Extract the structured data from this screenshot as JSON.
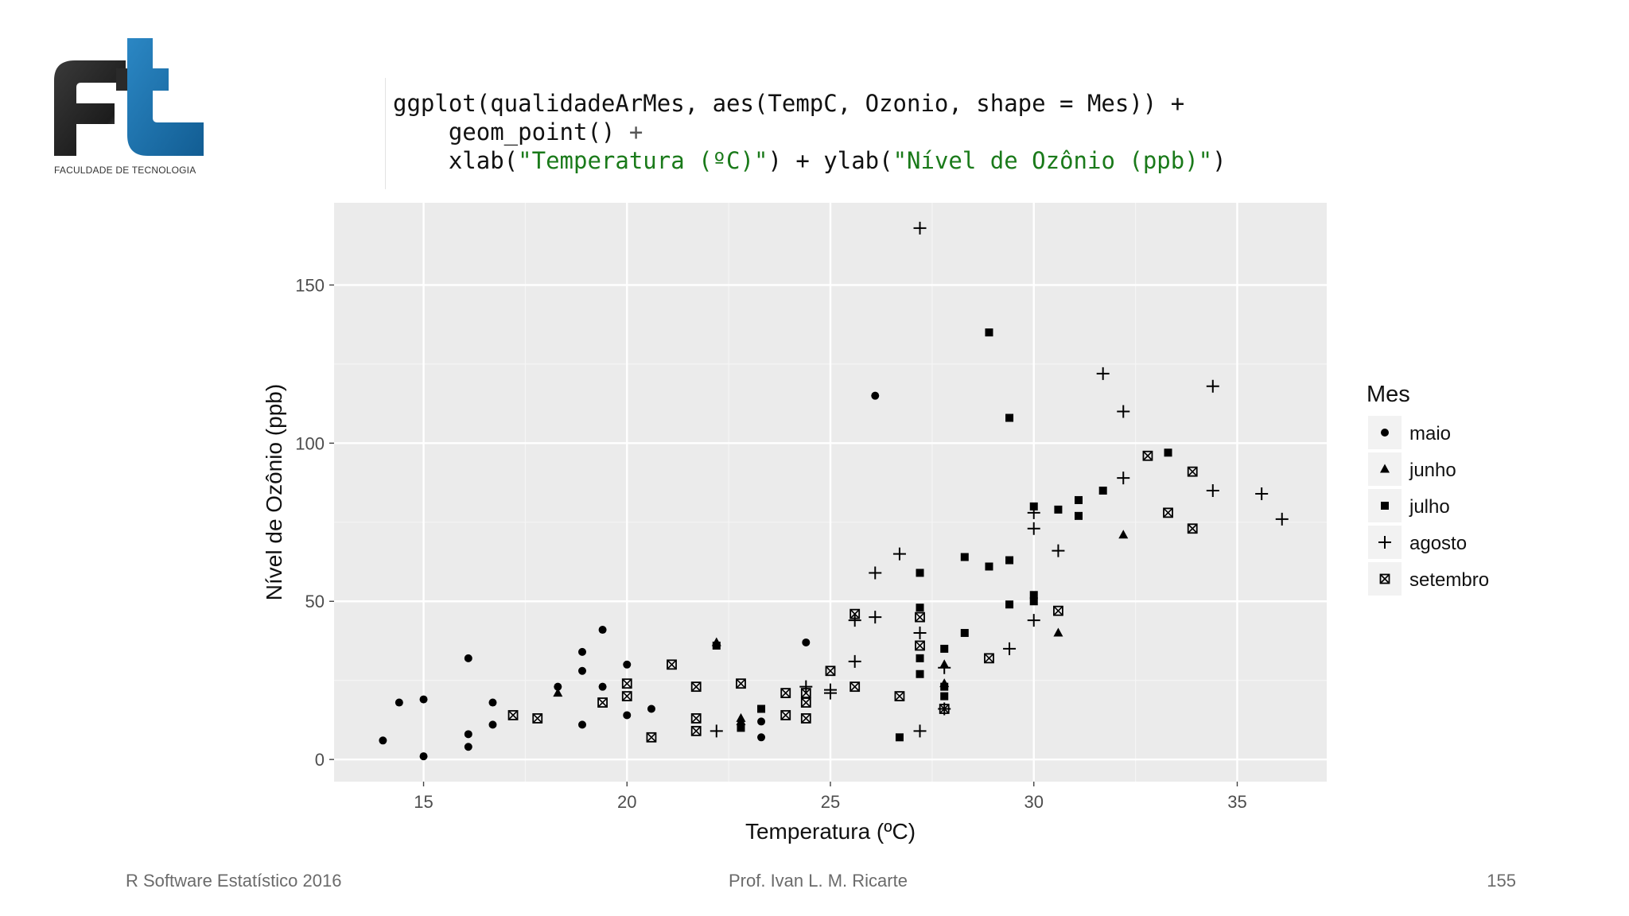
{
  "logo": {
    "caption": "FACULDADE DE TECNOLOGIA",
    "colors": {
      "dark": "#2a2a2a",
      "blue": "#1a73b0"
    }
  },
  "code": {
    "line1": "ggplot(qualidadeArMes, aes(TempC, Ozonio, shape = Mes)) +",
    "line2_fn": "geom_point()",
    "line2_op": " +",
    "line3_fn1": "xlab(",
    "line3_str1": "\"Temperatura (ºC)\"",
    "line3_mid": ") + ylab(",
    "line3_str2": "\"Nível de Ozônio (ppb)\"",
    "line3_end": ")"
  },
  "chart_data": {
    "type": "scatter",
    "xlabel": "Temperatura (ºC)",
    "ylabel": "Nível de Ozônio (ppb)",
    "xlim": [
      12.8,
      37.2
    ],
    "ylim": [
      -7,
      176
    ],
    "xticks": [
      15,
      20,
      25,
      30,
      35
    ],
    "yticks": [
      0,
      50,
      100,
      150
    ],
    "grid": true,
    "legend": {
      "title": "Mes",
      "placement": "right"
    },
    "series": [
      {
        "name": "maio",
        "shape": "circle",
        "points": [
          [
            14,
            6
          ],
          [
            14.4,
            18
          ],
          [
            15,
            19
          ],
          [
            15,
            1
          ],
          [
            16.1,
            32
          ],
          [
            16.1,
            8
          ],
          [
            16.1,
            4
          ],
          [
            16.7,
            18
          ],
          [
            16.7,
            11
          ],
          [
            18.3,
            23
          ],
          [
            18.9,
            34
          ],
          [
            18.9,
            28
          ],
          [
            18.9,
            11
          ],
          [
            19.4,
            41
          ],
          [
            19.4,
            23
          ],
          [
            20,
            30
          ],
          [
            20,
            14
          ],
          [
            20.6,
            16
          ],
          [
            23.3,
            12
          ],
          [
            23.3,
            7
          ],
          [
            24.4,
            37
          ],
          [
            26.1,
            115
          ]
        ]
      },
      {
        "name": "junho",
        "shape": "triangle",
        "points": [
          [
            18.3,
            21
          ],
          [
            22.2,
            37
          ],
          [
            22.8,
            13
          ],
          [
            22.8,
            12
          ],
          [
            27.8,
            30
          ],
          [
            27.8,
            24
          ],
          [
            30.6,
            40
          ],
          [
            32.2,
            71
          ]
        ]
      },
      {
        "name": "julho",
        "shape": "square",
        "points": [
          [
            22.2,
            36
          ],
          [
            22.8,
            10
          ],
          [
            23.3,
            16
          ],
          [
            26.7,
            7
          ],
          [
            27.2,
            59
          ],
          [
            27.2,
            48
          ],
          [
            27.2,
            32
          ],
          [
            27.2,
            27
          ],
          [
            27.8,
            35
          ],
          [
            27.8,
            23
          ],
          [
            27.8,
            20
          ],
          [
            28.3,
            40
          ],
          [
            28.3,
            64
          ],
          [
            28.9,
            61
          ],
          [
            28.9,
            135
          ],
          [
            29.4,
            63
          ],
          [
            29.4,
            49
          ],
          [
            29.4,
            108
          ],
          [
            30,
            52
          ],
          [
            30,
            50
          ],
          [
            30,
            80
          ],
          [
            30.6,
            79
          ],
          [
            31.1,
            82
          ],
          [
            31.1,
            77
          ],
          [
            31.7,
            85
          ],
          [
            33.3,
            97
          ]
        ]
      },
      {
        "name": "agosto",
        "shape": "plus",
        "points": [
          [
            22.2,
            9
          ],
          [
            24.4,
            23
          ],
          [
            25,
            22
          ],
          [
            25,
            21
          ],
          [
            25.6,
            31
          ],
          [
            25.6,
            44
          ],
          [
            26.1,
            59
          ],
          [
            26.1,
            45
          ],
          [
            26.7,
            65
          ],
          [
            27.2,
            168
          ],
          [
            27.2,
            40
          ],
          [
            27.2,
            9
          ],
          [
            27.8,
            29
          ],
          [
            27.8,
            16
          ],
          [
            29.4,
            35
          ],
          [
            30,
            73
          ],
          [
            30,
            78
          ],
          [
            30,
            44
          ],
          [
            30.6,
            66
          ],
          [
            31.7,
            122
          ],
          [
            32.2,
            110
          ],
          [
            32.2,
            89
          ],
          [
            34.4,
            118
          ],
          [
            34.4,
            85
          ],
          [
            35.6,
            84
          ],
          [
            36.1,
            76
          ]
        ]
      },
      {
        "name": "setembro",
        "shape": "boxx",
        "points": [
          [
            17.2,
            14
          ],
          [
            17.8,
            13
          ],
          [
            19.4,
            18
          ],
          [
            20,
            24
          ],
          [
            20,
            20
          ],
          [
            20.6,
            7
          ],
          [
            21.1,
            30
          ],
          [
            21.7,
            23
          ],
          [
            21.7,
            13
          ],
          [
            21.7,
            9
          ],
          [
            22.8,
            24
          ],
          [
            23.9,
            21
          ],
          [
            23.9,
            14
          ],
          [
            24.4,
            21
          ],
          [
            24.4,
            18
          ],
          [
            24.4,
            13
          ],
          [
            25,
            28
          ],
          [
            25.6,
            46
          ],
          [
            25.6,
            23
          ],
          [
            26.7,
            20
          ],
          [
            27.2,
            45
          ],
          [
            27.2,
            36
          ],
          [
            27.8,
            16
          ],
          [
            28.9,
            32
          ],
          [
            30.6,
            47
          ],
          [
            32.8,
            96
          ],
          [
            33.3,
            78
          ],
          [
            33.9,
            91
          ],
          [
            33.9,
            73
          ]
        ]
      }
    ]
  },
  "footer": {
    "left": "R Software Estatístico 2016",
    "center": "Prof. Ivan L. M. Ricarte",
    "right": "155"
  }
}
